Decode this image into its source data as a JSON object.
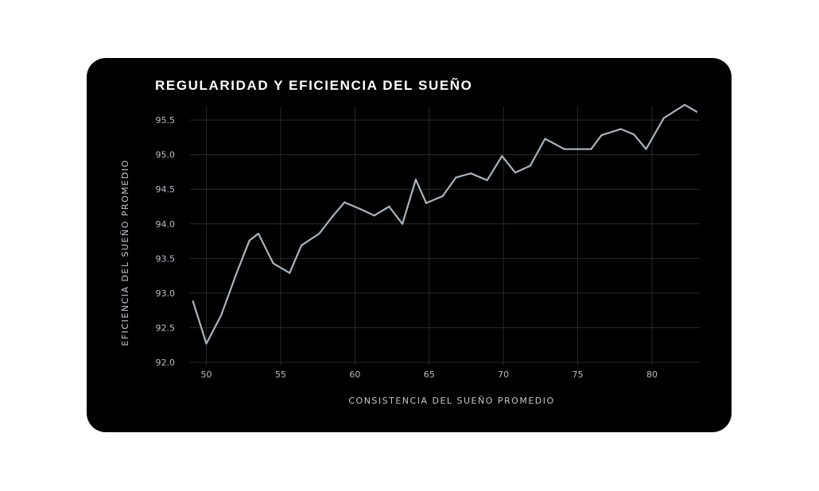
{
  "chart_data": {
    "type": "line",
    "title": "REGULARIDAD Y EFICIENCIA DEL SUEÑO",
    "xlabel": "CONSISTENCIA DEL SUEÑO PROMEDIO",
    "ylabel": "EFICIENCIA DEL SUEÑO PROMEDIO",
    "xlim": [
      48.9,
      83.0
    ],
    "ylim": [
      92.0,
      95.65
    ],
    "x_ticks": [
      50,
      55,
      60,
      65,
      70,
      75,
      80
    ],
    "y_ticks": [
      92.0,
      92.5,
      93.0,
      93.5,
      94.0,
      94.5,
      95.0,
      95.5
    ],
    "x_tick_labels": [
      "50",
      "55",
      "60",
      "65",
      "70",
      "75",
      "80"
    ],
    "y_tick_labels": [
      "92.0",
      "92.5",
      "93.0",
      "93.5",
      "94.0",
      "94.5",
      "95.0",
      "95.5"
    ],
    "grid": true,
    "series": [
      {
        "color": "#a9b4bd",
        "x": [
          49.1,
          50.0,
          51.0,
          52.0,
          52.9,
          53.5,
          54.5,
          55.6,
          56.4,
          57.6,
          58.5,
          59.3,
          60.3,
          61.3,
          62.3,
          63.2,
          64.1,
          64.8,
          65.9,
          66.8,
          67.8,
          68.9,
          69.9,
          70.8,
          71.8,
          72.8,
          74.1,
          75.0,
          75.9,
          76.6,
          77.9,
          78.8,
          79.6,
          80.8,
          82.2,
          83.0
        ],
        "y": [
          92.88,
          92.27,
          92.68,
          93.27,
          93.76,
          93.86,
          93.43,
          93.29,
          93.69,
          93.86,
          94.11,
          94.31,
          94.22,
          94.12,
          94.25,
          94.0,
          94.64,
          94.3,
          94.4,
          94.67,
          94.73,
          94.63,
          94.98,
          94.74,
          94.84,
          95.23,
          95.08,
          95.08,
          95.08,
          95.28,
          95.37,
          95.29,
          95.08,
          95.53,
          95.72,
          95.62
        ]
      }
    ]
  }
}
